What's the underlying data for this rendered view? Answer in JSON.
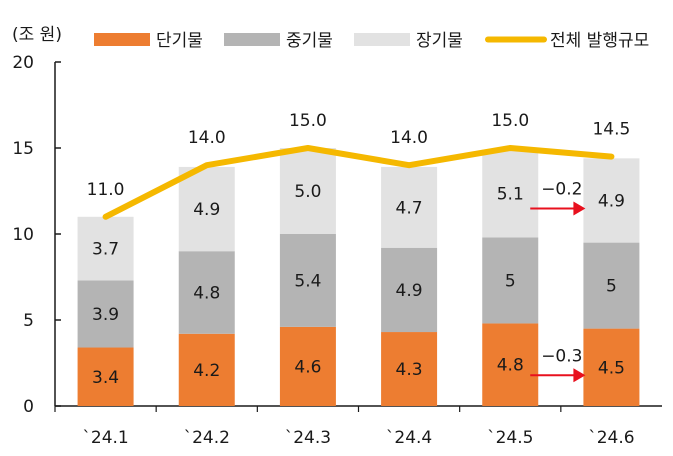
{
  "chart_data": {
    "type": "bar",
    "stacked": true,
    "unit_label": "(조 원)",
    "categories": [
      "`24.1",
      "`24.2",
      "`24.3",
      "`24.4",
      "`24.5",
      "`24.6"
    ],
    "series": [
      {
        "name": "단기물",
        "color": "#ED7D31",
        "values": [
          3.4,
          4.2,
          4.6,
          4.3,
          4.8,
          4.5
        ],
        "labels": [
          "3.4",
          "4.2",
          "4.6",
          "4.3",
          "4.8",
          "4.5"
        ]
      },
      {
        "name": "중기물",
        "color": "#B4B4B4",
        "values": [
          3.9,
          4.8,
          5.4,
          4.9,
          5.0,
          5.0
        ],
        "labels": [
          "3.9",
          "4.8",
          "5.4",
          "4.9",
          "5",
          "5"
        ]
      },
      {
        "name": "장기물",
        "color": "#E2E2E2",
        "values": [
          3.7,
          4.9,
          5.0,
          4.7,
          5.1,
          4.9
        ],
        "labels": [
          "3.7",
          "4.9",
          "5.0",
          "4.7",
          "5.1",
          "4.9"
        ]
      }
    ],
    "line_series": {
      "name": "전체 발행규모",
      "color": "#F5B800",
      "values": [
        11.0,
        14.0,
        15.0,
        14.0,
        15.0,
        14.5
      ],
      "labels": [
        "11.0",
        "14.0",
        "15.0",
        "14.0",
        "15.0",
        "14.5"
      ]
    },
    "ylim": [
      0,
      20
    ],
    "yticks": [
      0,
      5,
      10,
      15,
      20
    ],
    "legend_position": "top",
    "annotations": [
      {
        "text": "−0.2",
        "series": "장기물",
        "from": "`24.5",
        "to": "`24.6",
        "color": "#E8101E"
      },
      {
        "text": "−0.3",
        "series": "단기물",
        "from": "`24.5",
        "to": "`24.6",
        "color": "#E8101E"
      }
    ]
  }
}
